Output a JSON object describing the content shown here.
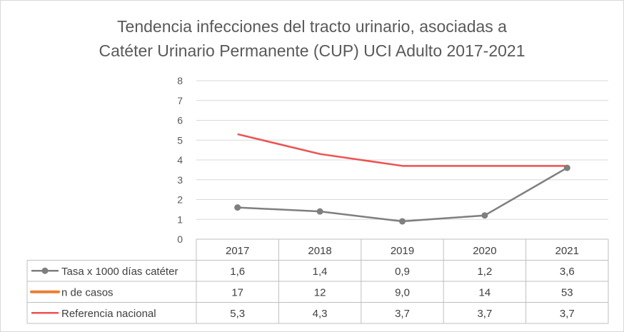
{
  "chart_data": {
    "type": "line",
    "title_line1": "Tendencia infecciones del tracto urinario, asociadas a",
    "title_line2": "Catéter Urinario Permanente (CUP) UCI Adulto 2017-2021",
    "categories": [
      "2017",
      "2018",
      "2019",
      "2020",
      "2021"
    ],
    "ylim": [
      0,
      8
    ],
    "y_ticks": [
      "0",
      "1",
      "2",
      "3",
      "4",
      "5",
      "6",
      "7",
      "8"
    ],
    "grid": true,
    "legend": "data-table",
    "series": [
      {
        "name": "Tasa x 1000 días catéter",
        "color": "#7f7f7f",
        "marker": "circle",
        "plotted": true,
        "values": [
          1.6,
          1.4,
          0.9,
          1.2,
          3.6
        ],
        "labels": [
          "1,6",
          "1,4",
          "0,9",
          "1,2",
          "3,6"
        ]
      },
      {
        "name": "n de casos",
        "color": "#ed7d31",
        "marker": "none",
        "plotted": false,
        "values": [
          17,
          12,
          9.0,
          14,
          53
        ],
        "labels": [
          "17",
          "12",
          "9,0",
          "14",
          "53"
        ]
      },
      {
        "name": "Referencia nacional",
        "color": "#f05050",
        "marker": "none",
        "plotted": true,
        "values": [
          5.3,
          4.3,
          3.7,
          3.7,
          3.7
        ],
        "labels": [
          "5,3",
          "4,3",
          "3,7",
          "3,7",
          "3,7"
        ]
      }
    ]
  }
}
